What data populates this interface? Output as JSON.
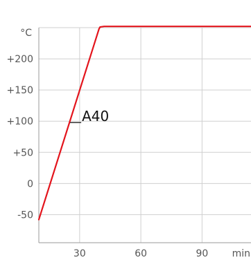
{
  "chart_data": {
    "type": "line",
    "unit_y": "°C",
    "unit_x": "min",
    "x_ticks": [
      30,
      60,
      90
    ],
    "x_tick_labels": [
      "30",
      "60",
      "90"
    ],
    "y_ticks": [
      200,
      150,
      100,
      50,
      0,
      -50
    ],
    "y_tick_labels": [
      "+200",
      "+150",
      "+100",
      "+50",
      "0",
      "-50"
    ],
    "xlim": [
      10,
      114
    ],
    "ylim": [
      -95,
      250
    ],
    "grid": true,
    "series": [
      {
        "name": "A40",
        "color": "#e3141c",
        "x": [
          10,
          39.5,
          40,
          42,
          60,
          90,
          114
        ],
        "y": [
          -58,
          248,
          251,
          252,
          252,
          252,
          252
        ]
      }
    ],
    "annotations": [
      {
        "text": "A40",
        "x": 25,
        "y": 100,
        "leader_line": true
      }
    ]
  }
}
